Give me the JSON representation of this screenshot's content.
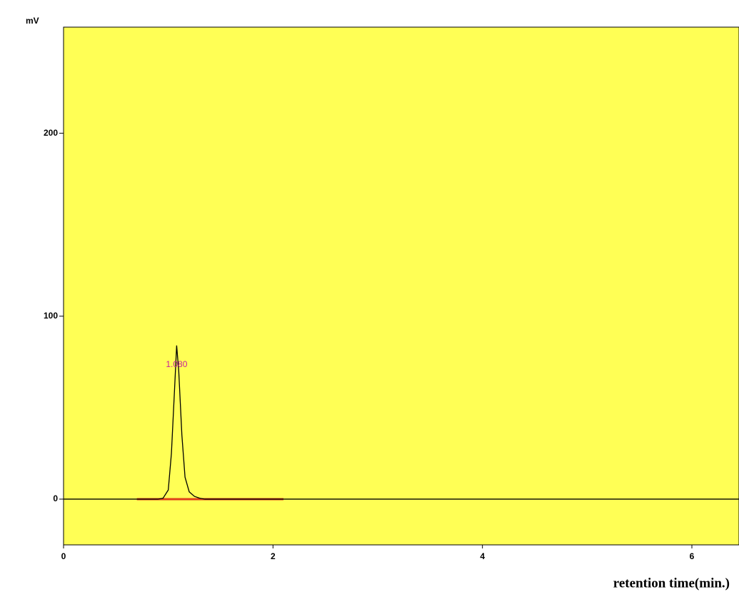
{
  "chart_data": {
    "type": "line",
    "y_label": "mV",
    "x_label": "retention time(min.)",
    "x": [
      0,
      0.9,
      0.95,
      1.0,
      1.03,
      1.06,
      1.08,
      1.1,
      1.13,
      1.16,
      1.2,
      1.25,
      1.3,
      1.35,
      6.45
    ],
    "values": [
      0,
      0,
      0.5,
      5,
      25,
      60,
      84,
      70,
      35,
      12,
      4,
      1.5,
      0.5,
      0,
      0
    ],
    "color": "#000000",
    "baseline": {
      "x": [
        0.7,
        2.1
      ],
      "values": [
        0,
        0
      ],
      "color": "#e0401a"
    },
    "annotation": {
      "text": "1.080",
      "x": 1.08,
      "color": "#c8209c"
    },
    "background": "#ffff55",
    "xlim": [
      0,
      6.45
    ],
    "xticks": [
      0,
      2,
      4,
      6
    ],
    "ylim": [
      -25,
      258
    ],
    "yticks": [
      0,
      100,
      200
    ]
  }
}
